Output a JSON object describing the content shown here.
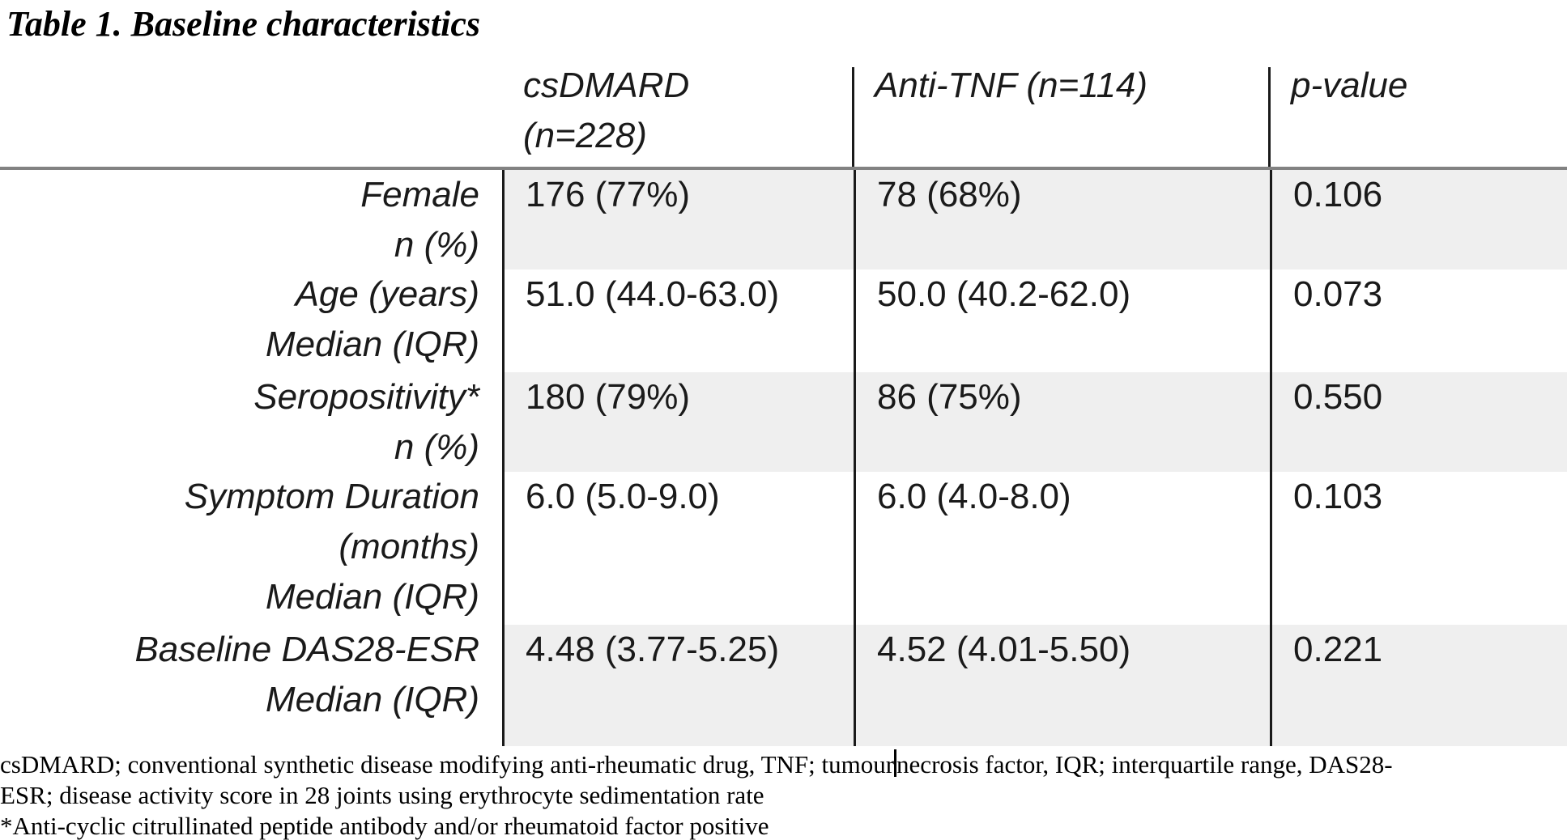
{
  "title": "Table 1. Baseline characteristics",
  "table": {
    "header": {
      "col1_lines": [
        "csDMARD",
        "(n=228)"
      ],
      "col2": "Anti-TNF (n=114)",
      "col3": "p-value"
    },
    "rows": [
      {
        "label_lines": [
          "Female",
          "n (%)"
        ],
        "csdmard": "176 (77%)",
        "anti_tnf": "78 (68%)",
        "p_value": "0.106"
      },
      {
        "label_lines": [
          "Age (years)",
          "Median (IQR)"
        ],
        "csdmard": "51.0 (44.0-63.0)",
        "anti_tnf": "50.0 (40.2-62.0)",
        "p_value": "0.073"
      },
      {
        "label_lines": [
          "Seropositivity*",
          "n (%)"
        ],
        "csdmard": "180 (79%)",
        "anti_tnf": "86 (75%)",
        "p_value": "0.550"
      },
      {
        "label_lines": [
          "Symptom Duration",
          "(months)",
          "Median (IQR)"
        ],
        "csdmard": "6.0 (5.0-9.0)",
        "anti_tnf": "6.0 (4.0-8.0)",
        "p_value": "0.103"
      },
      {
        "label_lines": [
          "Baseline DAS28-ESR",
          "Median (IQR)"
        ],
        "csdmard": "4.48 (3.77-5.25)",
        "anti_tnf": "4.52 (4.01-5.50)",
        "p_value": "0.221"
      }
    ]
  },
  "footnotes": {
    "line1_before_cursor": "csDMARD; conventional synthetic disease modifying anti-rheumatic drug, TNF; tumour",
    "line1_after_cursor": "necrosis factor, IQR; interquartile range, DAS28-",
    "line2": "ESR; disease activity score in 28 joints using erythrocyte sedimentation rate",
    "line3": "*Anti-cyclic citrullinated peptide antibody and/or rheumatoid factor positive"
  },
  "colors": {
    "row_shading": "#efefef",
    "top_rule": "#828282",
    "divider": "#1a1a1a",
    "text": "#000000"
  }
}
